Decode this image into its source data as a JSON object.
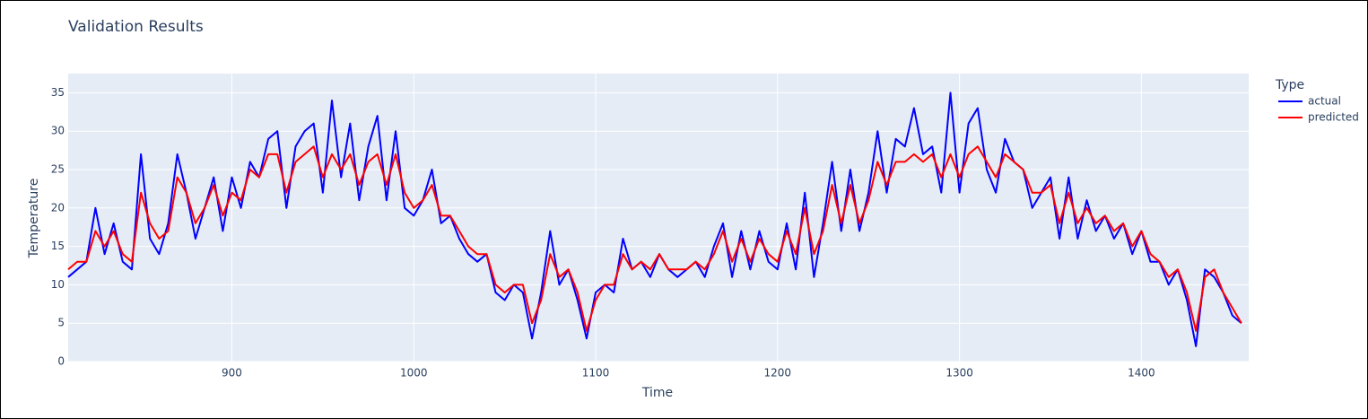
{
  "chart_data": {
    "type": "line",
    "title": "Validation Results",
    "x_label": "Time",
    "y_label": "Temperature",
    "legend_title": "Type",
    "legend_position": "right",
    "grid": true,
    "background": "#e5ecf6",
    "x": [
      810,
      815,
      820,
      825,
      830,
      835,
      840,
      845,
      850,
      855,
      860,
      865,
      870,
      875,
      880,
      885,
      890,
      895,
      900,
      905,
      910,
      915,
      920,
      925,
      930,
      935,
      940,
      945,
      950,
      955,
      960,
      965,
      970,
      975,
      980,
      985,
      990,
      995,
      1000,
      1005,
      1010,
      1015,
      1020,
      1025,
      1030,
      1035,
      1040,
      1045,
      1050,
      1055,
      1060,
      1065,
      1070,
      1075,
      1080,
      1085,
      1090,
      1095,
      1100,
      1105,
      1110,
      1115,
      1120,
      1125,
      1130,
      1135,
      1140,
      1145,
      1150,
      1155,
      1160,
      1165,
      1170,
      1175,
      1180,
      1185,
      1190,
      1195,
      1200,
      1205,
      1210,
      1215,
      1220,
      1225,
      1230,
      1235,
      1240,
      1245,
      1250,
      1255,
      1260,
      1265,
      1270,
      1275,
      1280,
      1285,
      1290,
      1295,
      1300,
      1305,
      1310,
      1315,
      1320,
      1325,
      1330,
      1335,
      1340,
      1345,
      1350,
      1355,
      1360,
      1365,
      1370,
      1375,
      1380,
      1385,
      1390,
      1395,
      1400,
      1405,
      1410,
      1415,
      1420,
      1425,
      1430,
      1435,
      1440,
      1445,
      1450,
      1455
    ],
    "series": [
      {
        "name": "actual",
        "color": "#0000ff",
        "values": [
          11,
          12,
          13,
          20,
          14,
          18,
          13,
          12,
          27,
          16,
          14,
          18,
          27,
          22,
          16,
          20,
          24,
          17,
          24,
          20,
          26,
          24,
          29,
          30,
          20,
          28,
          30,
          31,
          22,
          34,
          24,
          31,
          21,
          28,
          32,
          21,
          30,
          20,
          19,
          21,
          25,
          18,
          19,
          16,
          14,
          13,
          14,
          9,
          8,
          10,
          9,
          3,
          9,
          17,
          10,
          12,
          8,
          3,
          9,
          10,
          9,
          16,
          12,
          13,
          11,
          14,
          12,
          11,
          12,
          13,
          11,
          15,
          18,
          11,
          17,
          12,
          17,
          13,
          12,
          18,
          12,
          22,
          11,
          18,
          26,
          17,
          25,
          17,
          22,
          30,
          22,
          29,
          28,
          33,
          27,
          28,
          22,
          35,
          22,
          31,
          33,
          25,
          22,
          29,
          26,
          25,
          20,
          22,
          24,
          16,
          24,
          16,
          21,
          17,
          19,
          16,
          18,
          14,
          17,
          13,
          13,
          10,
          12,
          8,
          2,
          12,
          11,
          9,
          6,
          5
        ]
      },
      {
        "name": "predicted",
        "color": "#ff0000",
        "values": [
          12,
          13,
          13,
          17,
          15,
          17,
          14,
          13,
          22,
          18,
          16,
          17,
          24,
          22,
          18,
          20,
          23,
          19,
          22,
          21,
          25,
          24,
          27,
          27,
          22,
          26,
          27,
          28,
          24,
          27,
          25,
          27,
          23,
          26,
          27,
          23,
          27,
          22,
          20,
          21,
          23,
          19,
          19,
          17,
          15,
          14,
          14,
          10,
          9,
          10,
          10,
          5,
          8,
          14,
          11,
          12,
          9,
          4,
          8,
          10,
          10,
          14,
          12,
          13,
          12,
          14,
          12,
          12,
          12,
          13,
          12,
          14,
          17,
          13,
          16,
          13,
          16,
          14,
          13,
          17,
          14,
          20,
          14,
          17,
          23,
          18,
          23,
          18,
          21,
          26,
          23,
          26,
          26,
          27,
          26,
          27,
          24,
          27,
          24,
          27,
          28,
          26,
          24,
          27,
          26,
          25,
          22,
          22,
          23,
          18,
          22,
          18,
          20,
          18,
          19,
          17,
          18,
          15,
          17,
          14,
          13,
          11,
          12,
          9,
          4,
          11,
          12,
          9,
          7,
          5
        ]
      }
    ],
    "xlim": [
      810,
      1459
    ],
    "ylim": [
      0,
      37.5
    ],
    "xticks": [
      900,
      1000,
      1100,
      1200,
      1300,
      1400
    ],
    "yticks": [
      0,
      5,
      10,
      15,
      20,
      25,
      30,
      35
    ]
  }
}
